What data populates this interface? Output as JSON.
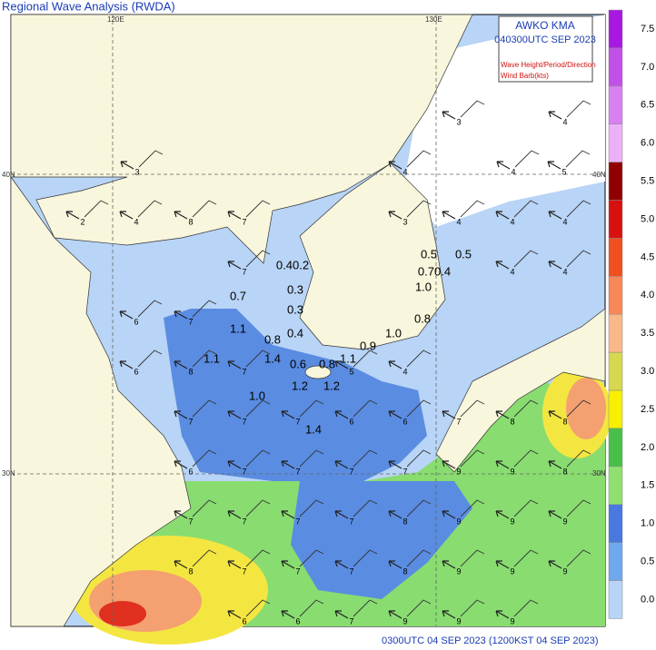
{
  "header": {
    "title": "Regional Wave Analysis (RWDA)",
    "box_line1": "AWKO   KMA",
    "box_line2": "040300UTC SEP 2023",
    "box_line3": "Wave Height/Period/Direction",
    "box_line4": "Wind Barb(kts)"
  },
  "footer": "0300UTC 04 SEP 2023 (1200KST 04 SEP 2023)",
  "grid_labels": {
    "lon_120": "120E",
    "lon_130": "130E",
    "lat_40_left": "40N",
    "lat_40_right": "40N",
    "lat_30_left": "30N",
    "lat_30_right": "30N"
  },
  "colorbar": {
    "labels": [
      "7.5",
      "7.0",
      "6.5",
      "6.0",
      "5.5",
      "5.0",
      "4.5",
      "4.0",
      "3.5",
      "3.0",
      "2.5",
      "2.0",
      "1.5",
      "1.0",
      "0.5",
      "0.0"
    ],
    "colors": [
      "#a818e0",
      "#c050e8",
      "#d880f0",
      "#ecb0f8",
      "#900000",
      "#d81010",
      "#f05020",
      "#f88858",
      "#f8b888",
      "#d8d850",
      "#f8f000",
      "#48c048",
      "#90e070",
      "#4878e0",
      "#70a8f0",
      "#b8d4f8"
    ]
  },
  "wave_heights": [
    "0.5",
    "0.5",
    "0.70.4",
    "0.40.2",
    "0.3",
    "1.0",
    "0.7",
    "0.3",
    "0.8",
    "1.1",
    "0.8",
    "0.4",
    "1.0",
    "0.9",
    "1.1",
    "1.4",
    "0.6",
    "0.8",
    "1.1",
    "1.2",
    "1.2",
    "1.0",
    "1.4"
  ],
  "periods": [
    "3",
    "4",
    "3",
    "4",
    "4",
    "5",
    "2",
    "4",
    "8",
    "7",
    "3",
    "4",
    "4",
    "4",
    "7",
    "4",
    "4",
    "6",
    "7",
    "6",
    "8",
    "7",
    "5",
    "4",
    "7",
    "7",
    "7",
    "6",
    "6",
    "7",
    "8",
    "8",
    "6",
    "7",
    "7",
    "7",
    "7",
    "9",
    "9",
    "8",
    "7",
    "7",
    "7",
    "7",
    "8",
    "9",
    "9",
    "9",
    "8",
    "7",
    "7",
    "7",
    "8",
    "9",
    "9",
    "9",
    "6",
    "6",
    "7",
    "9",
    "9",
    "9"
  ]
}
